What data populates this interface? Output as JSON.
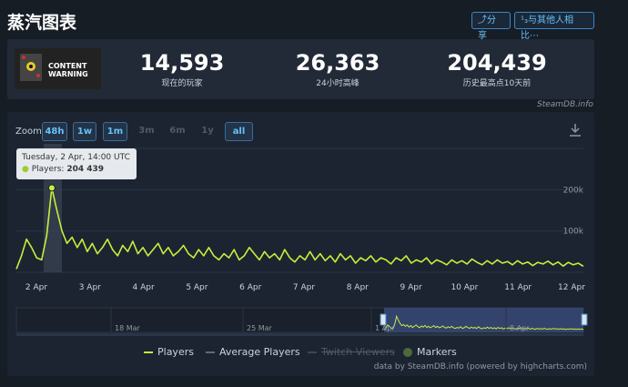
{
  "header": {
    "title": "蒸汽图表",
    "share_label": "分享",
    "compare_label": "¹₃与其他人相比⋯"
  },
  "game": {
    "logo_line1": "CONTENT",
    "logo_line2": "WARNING"
  },
  "stats": [
    {
      "value": "14,593",
      "label": "现在的玩家"
    },
    {
      "value": "26,363",
      "label": "24小时高峰"
    },
    {
      "value": "204,439",
      "label": "历史最高点10天前"
    }
  ],
  "watermark": "SteamDB.info",
  "zoom": {
    "label": "Zoom",
    "buttons": [
      {
        "label": "48h",
        "active": true
      },
      {
        "label": "1w",
        "active": true
      },
      {
        "label": "1m",
        "active": true
      },
      {
        "label": "3m",
        "active": false
      },
      {
        "label": "6m",
        "active": false
      },
      {
        "label": "1y",
        "active": false
      },
      {
        "label": "all",
        "active": true
      }
    ]
  },
  "tooltip": {
    "date": "Tuesday, 2 Apr, 14:00 UTC",
    "series": "Players:",
    "value": "204 439"
  },
  "colors": {
    "series": "#c4f03c",
    "accent": "#67c1f5",
    "nav_fill": "#3e4f82"
  },
  "chart_data": {
    "type": "line",
    "x_tick_labels": [
      "2 Apr",
      "3 Apr",
      "4 Apr",
      "5 Apr",
      "6 Apr",
      "7 Apr",
      "8 Apr",
      "9 Apr",
      "10 Apr",
      "11 Apr",
      "12 Apr"
    ],
    "y_tick_labels": [
      "100k",
      "200k"
    ],
    "ylim": [
      0,
      300000
    ],
    "series": [
      {
        "name": "Players",
        "values": [
          8000,
          40000,
          80000,
          60000,
          35000,
          30000,
          90000,
          204439,
          150000,
          100000,
          70000,
          85000,
          60000,
          80000,
          50000,
          70000,
          45000,
          60000,
          80000,
          55000,
          40000,
          65000,
          50000,
          75000,
          45000,
          60000,
          40000,
          55000,
          70000,
          45000,
          60000,
          40000,
          50000,
          65000,
          45000,
          35000,
          55000,
          40000,
          60000,
          40000,
          30000,
          45000,
          35000,
          55000,
          30000,
          40000,
          60000,
          45000,
          30000,
          50000,
          35000,
          45000,
          30000,
          55000,
          35000,
          25000,
          40000,
          30000,
          50000,
          30000,
          45000,
          28000,
          40000,
          25000,
          45000,
          30000,
          40000,
          22000,
          35000,
          28000,
          40000,
          25000,
          35000,
          30000,
          20000,
          35000,
          28000,
          40000,
          22000,
          30000,
          25000,
          35000,
          20000,
          30000,
          25000,
          18000,
          30000,
          22000,
          28000,
          20000,
          32000,
          24000,
          18000,
          28000,
          20000,
          30000,
          22000,
          26000,
          18000,
          28000,
          20000,
          25000,
          16000,
          24000,
          20000,
          27000,
          18000,
          25000,
          15000,
          24000,
          18000,
          22000,
          14593
        ]
      }
    ],
    "marker_label": "1",
    "navigator_labels": [
      "18 Mar",
      "25 Mar",
      "1 Apr",
      "8 Apr"
    ]
  },
  "legend": [
    "Players",
    "Average Players",
    "Twitch Viewers",
    "Markers"
  ],
  "credit": "data by SteamDB.info (powered by highcharts.com)"
}
